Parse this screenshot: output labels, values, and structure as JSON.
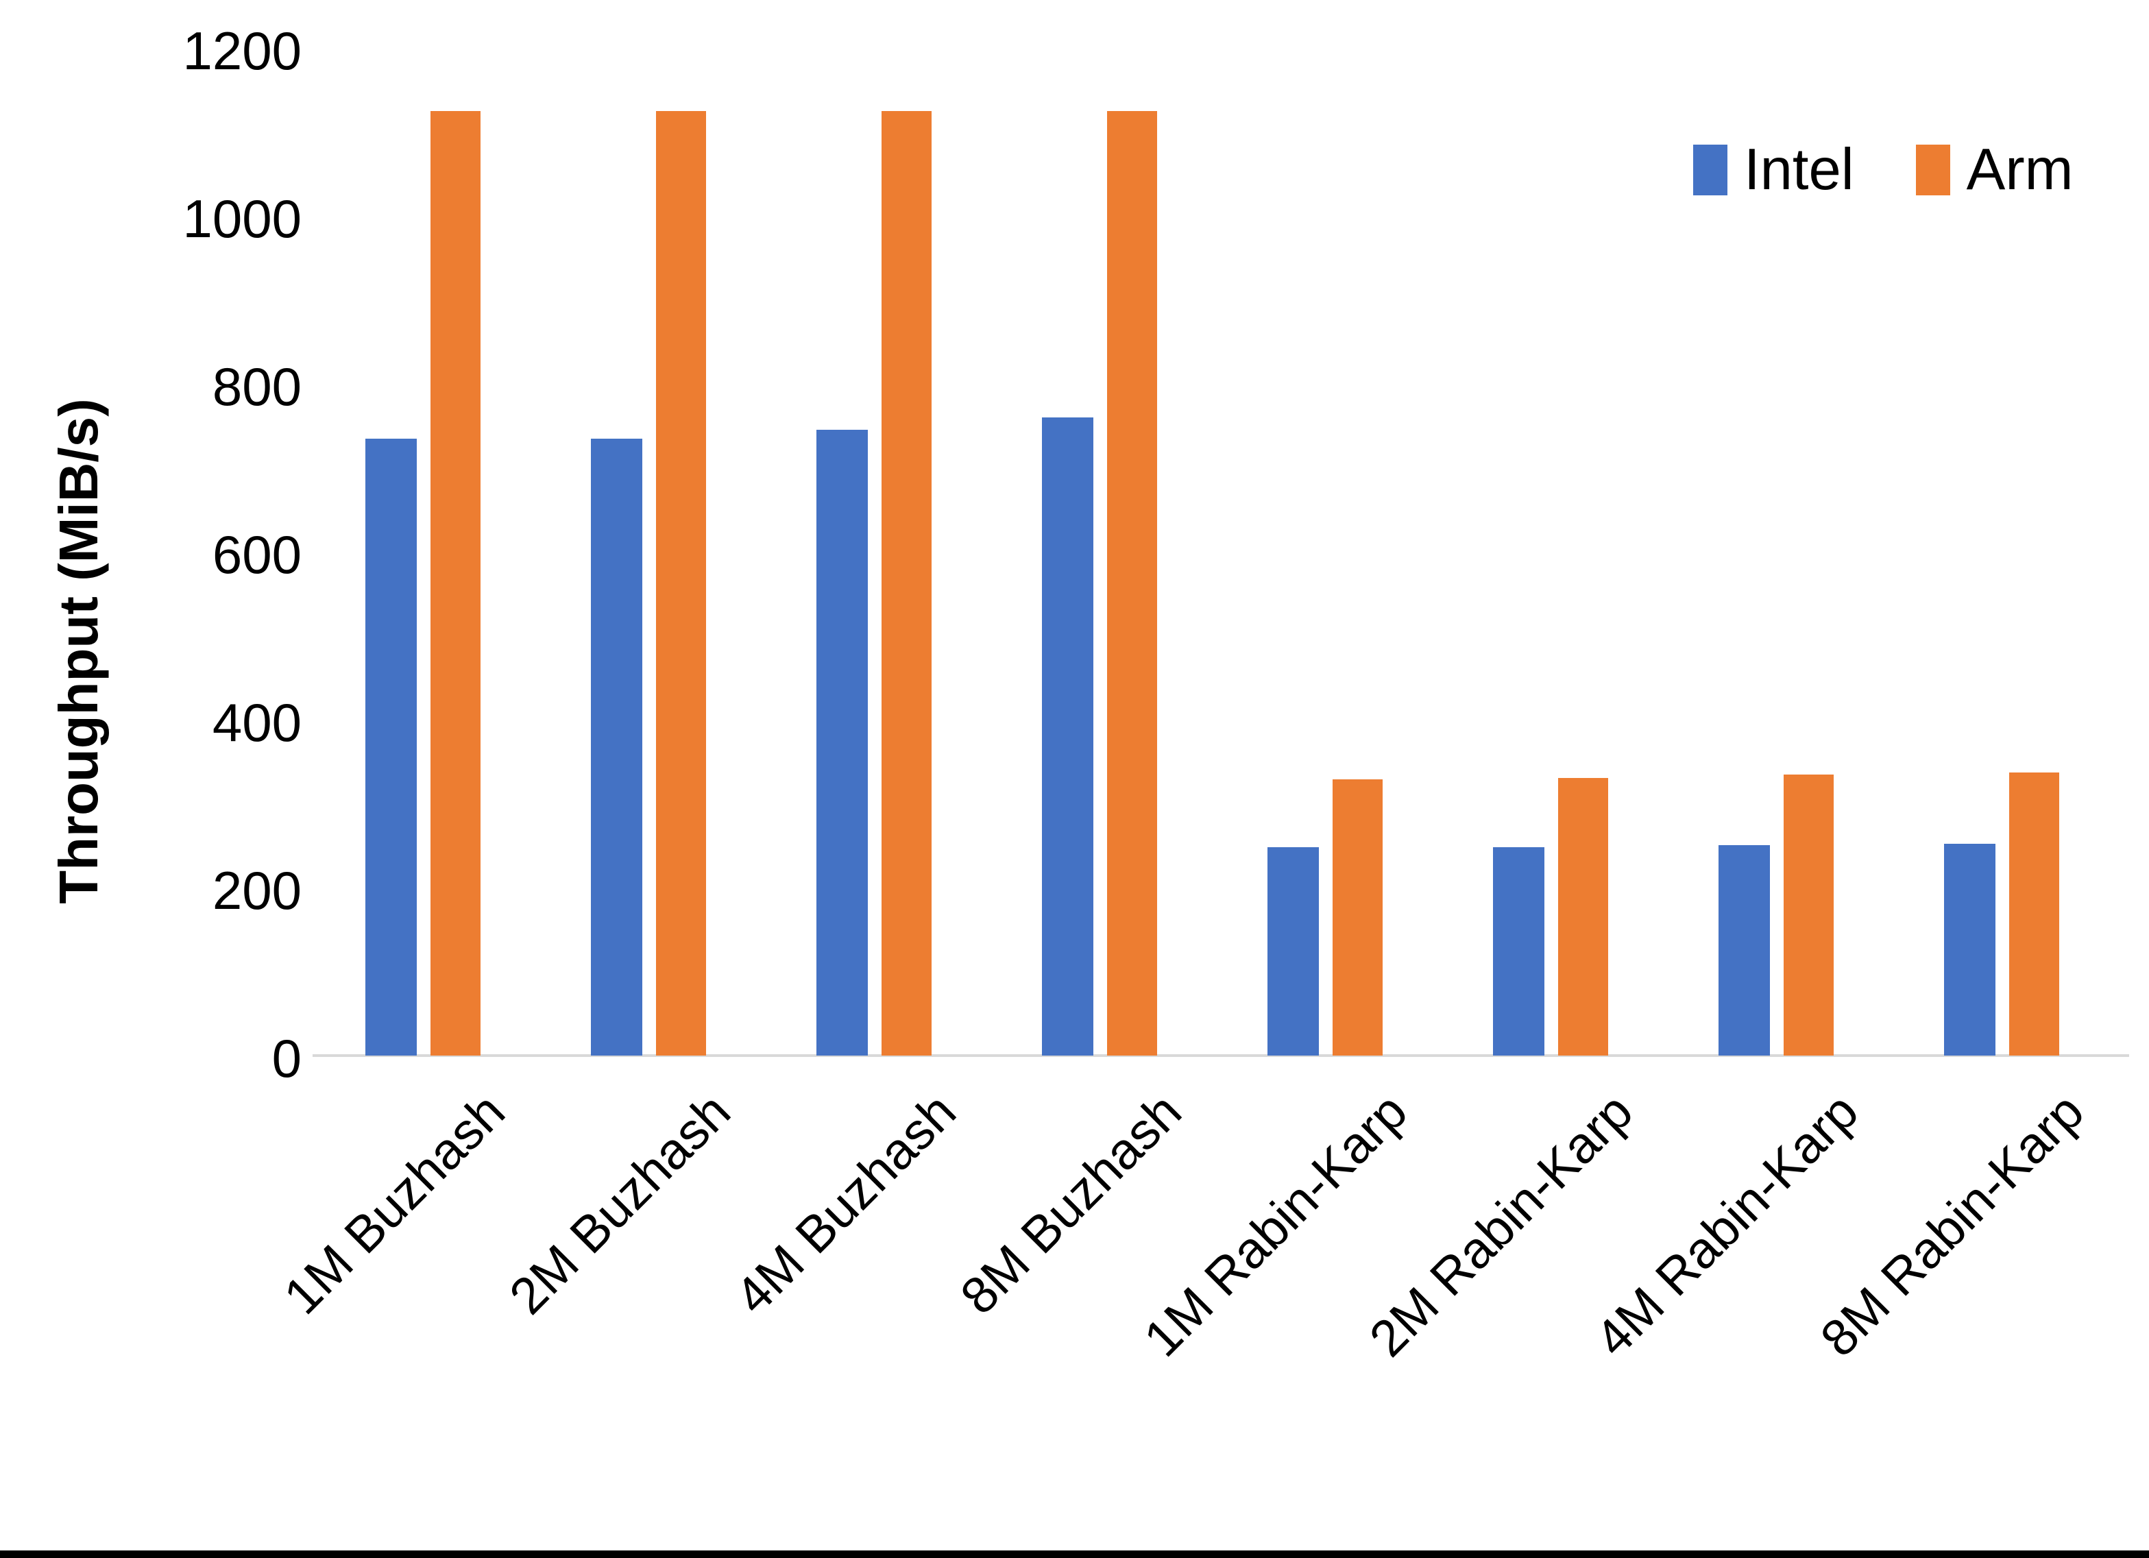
{
  "chart_data": {
    "type": "bar",
    "title": "",
    "xlabel": "",
    "ylabel": "Throughput (MiB/s)",
    "ylim": [
      0,
      1200
    ],
    "yticks": [
      0,
      200,
      400,
      600,
      800,
      1000,
      1200
    ],
    "grid": false,
    "legend_position": "top-right",
    "categories": [
      "1M Buzhash",
      "2M Buzhash",
      "4M Buzhash",
      "8M Buzhash",
      "1M Rabin-Karp",
      "2M Rabin-Karp",
      "4M Rabin-Karp",
      "8M Rabin-Karp"
    ],
    "series": [
      {
        "name": "Intel",
        "color": "#4472C4",
        "values": [
          735,
          735,
          745,
          760,
          248,
          248,
          251,
          252
        ]
      },
      {
        "name": "Arm",
        "color": "#ED7D31",
        "values": [
          1125,
          1125,
          1125,
          1125,
          329,
          331,
          335,
          337
        ]
      }
    ]
  },
  "colors": {
    "background": "#FFFFFF",
    "axis_line": "#D9D9D9",
    "text": "#000000",
    "bottom_border": "#000000"
  }
}
